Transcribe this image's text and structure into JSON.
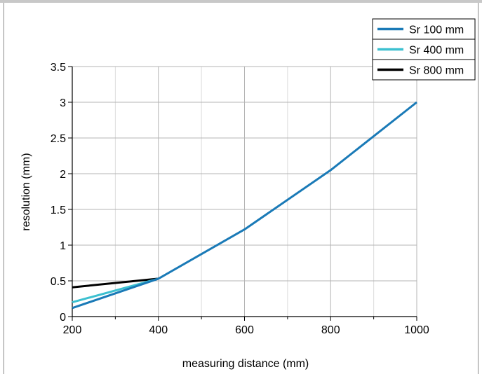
{
  "chart_data": {
    "type": "line",
    "xlabel": "measuring distance (mm)",
    "ylabel": "resolution (mm)",
    "xlim": [
      200,
      1000
    ],
    "ylim": [
      0,
      3.5
    ],
    "xticks": [
      "200",
      "400",
      "600",
      "800",
      "1000"
    ],
    "yticks": [
      "0",
      "0.5",
      "1",
      "1.5",
      "2",
      "2.5",
      "3",
      "3.5"
    ],
    "grid": true,
    "legend_position": "top-right",
    "series": [
      {
        "name": "Sr 100 mm",
        "color": "#1a7ab7",
        "x": [
          200,
          400,
          600,
          800,
          1000
        ],
        "y": [
          0.12,
          0.53,
          1.22,
          2.05,
          3.0
        ]
      },
      {
        "name": "Sr 400 mm",
        "color": "#3cc0d0",
        "x": [
          200,
          400
        ],
        "y": [
          0.2,
          0.53
        ]
      },
      {
        "name": "Sr 800 mm",
        "color": "#000000",
        "x": [
          200,
          400
        ],
        "y": [
          0.41,
          0.53
        ]
      }
    ]
  }
}
